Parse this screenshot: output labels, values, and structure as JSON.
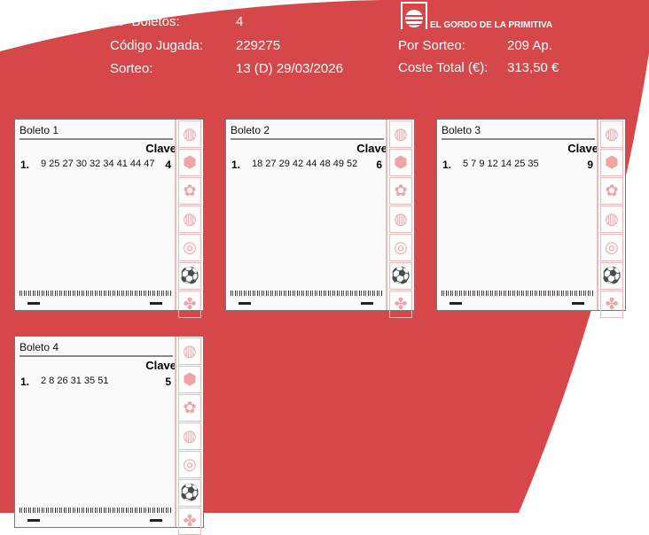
{
  "header": {
    "boletos_label": "Nº Boletos:",
    "boletos_value": "4",
    "codigo_label": "Código Jugada:",
    "codigo_value": "229275",
    "sorteo_label": "Sorteo:",
    "sorteo_value": "13  (D) 29/03/2026",
    "por_sorteo_label": "Por Sorteo:",
    "por_sorteo_value": "209 Ap.",
    "coste_label": "Coste Total (€):",
    "coste_value": "313,50 €",
    "logo_text": "EL GORDO DE LA PRIMITIVA"
  },
  "colors": {
    "brand_red": "#d6474a",
    "icon_pink": "#f0a4a6"
  },
  "side_icons": [
    "striped-ball-icon",
    "cube-icon",
    "flower-icon",
    "striped-ball-icon",
    "spiral-icon",
    "soccer-ball-icon",
    "clover-icon"
  ],
  "tickets": [
    {
      "title": "Boleto 1",
      "clave_label": "Clave",
      "index": "1.",
      "numbers": "9 25 27 30 32 34 41 44 47",
      "clave": "4"
    },
    {
      "title": "Boleto 2",
      "clave_label": "Clave",
      "index": "1.",
      "numbers": "18 27 29 42 44 48 49 52",
      "clave": "6"
    },
    {
      "title": "Boleto 3",
      "clave_label": "Clave",
      "index": "1.",
      "numbers": "5 7 9 12 14 25 35",
      "clave": "9"
    },
    {
      "title": "Boleto 4",
      "clave_label": "Clave",
      "index": "1.",
      "numbers": "2 8 26 31 35 51",
      "clave": "5"
    }
  ]
}
